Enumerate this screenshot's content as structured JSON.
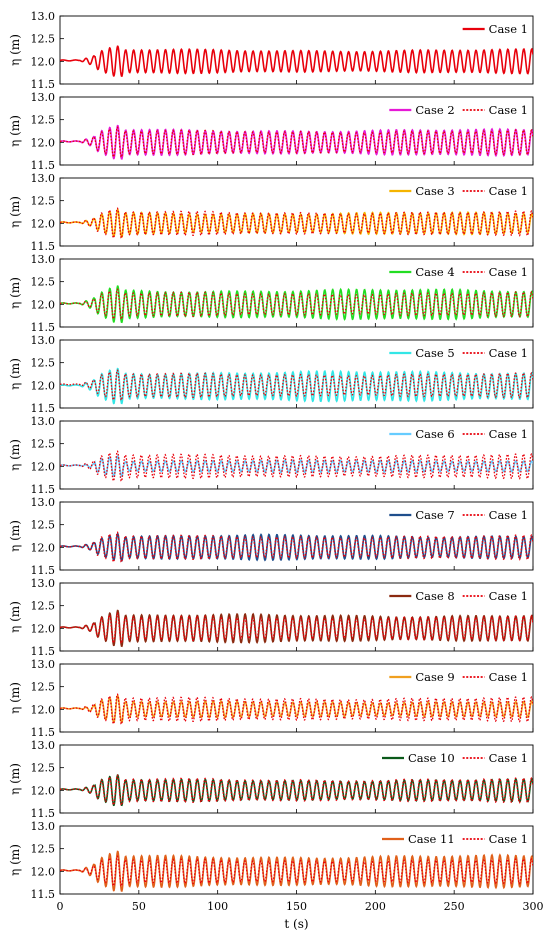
{
  "chart_data": {
    "type": "line",
    "title": "",
    "ylabel": "η (m)",
    "xlabel": "t (s)",
    "xlim": [
      0,
      300
    ],
    "ylim": [
      11.5,
      13.0
    ],
    "x_ticks": [
      0,
      50,
      100,
      150,
      200,
      250,
      300
    ],
    "x_tick_labels": [
      "0",
      "50",
      "100",
      "150",
      "200",
      "250",
      "300"
    ],
    "y_ticks": [
      11.5,
      12.0,
      12.5,
      13.0
    ],
    "y_tick_labels": [
      "11.5",
      "12.0",
      "12.5",
      "13.0"
    ],
    "legend_position": "top-right",
    "reference": {
      "name": "Case 1",
      "color": "#e8000b"
    },
    "panels": [
      {
        "name": "Case 1",
        "color": "#e8000b",
        "show_reference": false,
        "mean": 12.02,
        "amplitude": 0.24,
        "peak_amplitude": 0.33
      },
      {
        "name": "Case 2",
        "color": "#e619d6",
        "show_reference": true,
        "mean": 12.02,
        "amplitude": 0.26,
        "peak_amplitude": 0.38
      },
      {
        "name": "Case 3",
        "color": "#f5b400",
        "show_reference": true,
        "mean": 12.02,
        "amplitude": 0.22,
        "peak_amplitude": 0.3
      },
      {
        "name": "Case 4",
        "color": "#22dd22",
        "show_reference": true,
        "mean": 12.02,
        "amplitude": 0.3,
        "peak_amplitude": 0.4
      },
      {
        "name": "Case 5",
        "color": "#33e6e6",
        "show_reference": true,
        "mean": 12.0,
        "amplitude": 0.3,
        "peak_amplitude": 0.42
      },
      {
        "name": "Case 6",
        "color": "#66ccff",
        "show_reference": true,
        "mean": 12.02,
        "amplitude": 0.12,
        "peak_amplitude": 0.28
      },
      {
        "name": "Case 7",
        "color": "#1f4e8c",
        "show_reference": true,
        "mean": 12.02,
        "amplitude": 0.25,
        "peak_amplitude": 0.35
      },
      {
        "name": "Case 8",
        "color": "#8b2a10",
        "show_reference": true,
        "mean": 12.02,
        "amplitude": 0.28,
        "peak_amplitude": 0.42
      },
      {
        "name": "Case 9",
        "color": "#f0a020",
        "show_reference": true,
        "mean": 12.02,
        "amplitude": 0.16,
        "peak_amplitude": 0.3
      },
      {
        "name": "Case 10",
        "color": "#0b5a1a",
        "show_reference": true,
        "mean": 12.02,
        "amplitude": 0.22,
        "peak_amplitude": 0.34
      },
      {
        "name": "Case 11",
        "color": "#e0601a",
        "show_reference": true,
        "mean": 12.02,
        "amplitude": 0.32,
        "peak_amplitude": 0.45
      }
    ]
  }
}
